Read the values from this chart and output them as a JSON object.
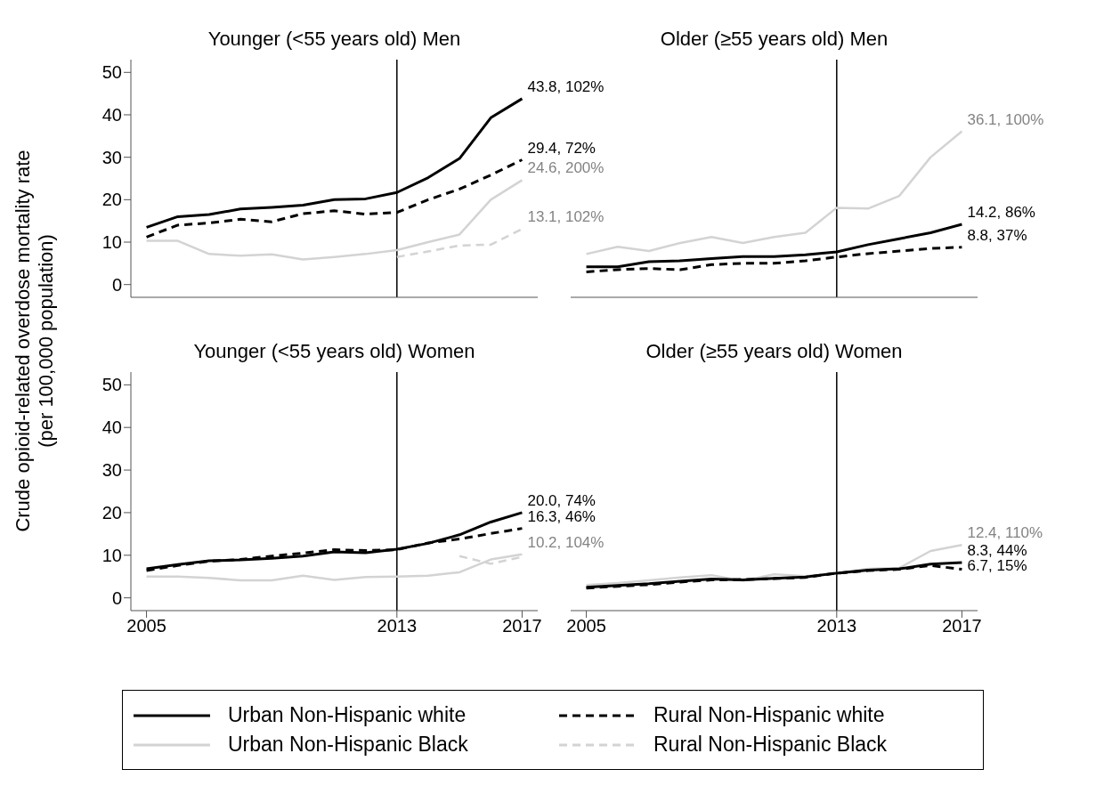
{
  "chart_data": [
    {
      "type": "line",
      "title": "Younger (<55 years old) Men",
      "ylabel": "Crude opioid-related overdose mortality rate\n(per 100,000 population)",
      "legend": "bottom",
      "tick_labels": "y",
      "x": [
        2005,
        2006,
        2007,
        2008,
        2009,
        2010,
        2011,
        2012,
        2013,
        2014,
        2015,
        2016,
        2017
      ],
      "xlim": [
        2004.5,
        2017.5
      ],
      "xticks": [
        2005,
        2013,
        2017
      ],
      "ylim": [
        -3,
        53
      ],
      "yticks": [
        0,
        10,
        20,
        30,
        40,
        50
      ],
      "ref_lines": [
        {
          "axis": "x",
          "value": 2013,
          "color": "#000000"
        }
      ],
      "series": [
        {
          "name": "Urban Non-Hispanic white",
          "color": "#000000",
          "line_style": "solid",
          "values": [
            13.5,
            16,
            16.5,
            17.8,
            18.2,
            18.7,
            20,
            20.2,
            21.7,
            25.2,
            29.7,
            39.3,
            43.8
          ],
          "value_labels": [
            null,
            null,
            null,
            null,
            null,
            null,
            null,
            null,
            null,
            null,
            null,
            null,
            "43.8, 102%"
          ]
        },
        {
          "name": "Rural Non-Hispanic white",
          "color": "#000000",
          "line_style": "dashed",
          "values": [
            11.2,
            14,
            14.5,
            15.4,
            14.8,
            16.7,
            17.4,
            16.6,
            17,
            20,
            22.5,
            25.8,
            29.4
          ],
          "value_labels": [
            null,
            null,
            null,
            null,
            null,
            null,
            null,
            null,
            null,
            null,
            null,
            null,
            "29.4, 72%"
          ]
        },
        {
          "name": "Urban Non-Hispanic Black",
          "color": "#d3d3d3",
          "line_style": "solid",
          "values": [
            10.3,
            10.3,
            7.2,
            6.8,
            7.1,
            5.9,
            6.5,
            7.2,
            8.1,
            10,
            11.8,
            20,
            24.6
          ],
          "value_labels": [
            null,
            null,
            null,
            null,
            null,
            null,
            null,
            null,
            null,
            null,
            null,
            null,
            "24.6, 200%"
          ]
        },
        {
          "name": "Rural Non-Hispanic Black",
          "color": "#d3d3d3",
          "line_style": "dashed",
          "values": [
            null,
            null,
            null,
            null,
            null,
            null,
            null,
            null,
            6.5,
            7.8,
            9.2,
            9.4,
            13.1
          ],
          "value_labels": [
            null,
            null,
            null,
            null,
            null,
            null,
            null,
            null,
            null,
            null,
            null,
            null,
            "13.1, 102%"
          ]
        }
      ]
    },
    {
      "type": "line",
      "title": "Older (≥55 years old) Men",
      "tick_labels": false,
      "x": [
        2005,
        2006,
        2007,
        2008,
        2009,
        2010,
        2011,
        2012,
        2013,
        2014,
        2015,
        2016,
        2017
      ],
      "xlim": [
        2004.5,
        2017.5
      ],
      "xticks": [
        2005,
        2013,
        2017
      ],
      "ylim": [
        -3,
        53
      ],
      "yticks": [
        0,
        10,
        20,
        30,
        40,
        50
      ],
      "ref_lines": [
        {
          "axis": "x",
          "value": 2013,
          "color": "#000000"
        }
      ],
      "series": [
        {
          "name": "Urban Non-Hispanic white",
          "color": "#000000",
          "line_style": "solid",
          "values": [
            4.2,
            4.2,
            5.4,
            5.6,
            6.1,
            6.6,
            6.6,
            7,
            7.7,
            9.4,
            10.8,
            12.2,
            14.2
          ],
          "value_labels": [
            null,
            null,
            null,
            null,
            null,
            null,
            null,
            null,
            null,
            null,
            null,
            null,
            "14.2, 86%"
          ]
        },
        {
          "name": "Rural Non-Hispanic white",
          "color": "#000000",
          "line_style": "dashed",
          "values": [
            3,
            3.5,
            3.8,
            3.5,
            4.7,
            5,
            5,
            5.6,
            6.5,
            7.3,
            7.9,
            8.5,
            8.8
          ],
          "value_labels": [
            null,
            null,
            null,
            null,
            null,
            null,
            null,
            null,
            null,
            null,
            null,
            null,
            "8.8, 37%"
          ]
        },
        {
          "name": "Urban Non-Hispanic Black",
          "color": "#d3d3d3",
          "line_style": "solid",
          "values": [
            7.2,
            8.9,
            7.9,
            9.8,
            11.2,
            9.8,
            11.2,
            12.2,
            18.1,
            17.9,
            20.9,
            30,
            36.1
          ],
          "value_labels": [
            null,
            null,
            null,
            null,
            null,
            null,
            null,
            null,
            null,
            null,
            null,
            null,
            "36.1, 100%"
          ]
        }
      ]
    },
    {
      "type": "line",
      "title": "Younger (<55 years old) Women",
      "x": [
        2005,
        2006,
        2007,
        2008,
        2009,
        2010,
        2011,
        2012,
        2013,
        2014,
        2015,
        2016,
        2017
      ],
      "xlim": [
        2004.5,
        2017.5
      ],
      "xticks": [
        2005,
        2013,
        2017
      ],
      "ylim": [
        -3,
        53
      ],
      "yticks": [
        0,
        10,
        20,
        30,
        40,
        50
      ],
      "ref_lines": [
        {
          "axis": "x",
          "value": 2013,
          "color": "#000000"
        }
      ],
      "series": [
        {
          "name": "Urban Non-Hispanic white",
          "color": "#000000",
          "line_style": "solid",
          "values": [
            6.8,
            7.8,
            8.7,
            8.9,
            9.3,
            9.8,
            10.8,
            10.6,
            11.4,
            12.8,
            14.8,
            17.8,
            20
          ],
          "value_labels": [
            null,
            null,
            null,
            null,
            null,
            null,
            null,
            null,
            null,
            null,
            null,
            null,
            "20.0, 74%"
          ]
        },
        {
          "name": "Rural Non-Hispanic white",
          "color": "#000000",
          "line_style": "dashed",
          "values": [
            6.4,
            7.6,
            8.6,
            9,
            9.8,
            10.5,
            11.3,
            11.1,
            11.3,
            12.9,
            13.8,
            15.1,
            16.3
          ],
          "value_labels": [
            null,
            null,
            null,
            null,
            null,
            null,
            null,
            null,
            null,
            null,
            null,
            null,
            "16.3, 46%"
          ]
        },
        {
          "name": "Urban Non-Hispanic Black",
          "color": "#d3d3d3",
          "line_style": "solid",
          "values": [
            5,
            5,
            4.7,
            4.1,
            4.1,
            5.2,
            4.2,
            4.9,
            5,
            5.2,
            6,
            9,
            10.2
          ],
          "value_labels": [
            null,
            null,
            null,
            null,
            null,
            null,
            null,
            null,
            null,
            null,
            null,
            null,
            "10.2, 104%"
          ]
        },
        {
          "name": "Rural Non-Hispanic Black",
          "color": "#d3d3d3",
          "line_style": "dashed",
          "values": [
            null,
            null,
            null,
            null,
            null,
            null,
            null,
            null,
            null,
            null,
            9.8,
            8,
            9.6
          ]
        }
      ]
    },
    {
      "type": "line",
      "title": "Older (≥55 years old) Women",
      "tick_labels": "x",
      "x": [
        2005,
        2006,
        2007,
        2008,
        2009,
        2010,
        2011,
        2012,
        2013,
        2014,
        2015,
        2016,
        2017
      ],
      "xlim": [
        2004.5,
        2017.5
      ],
      "xticks": [
        2005,
        2013,
        2017
      ],
      "ylim": [
        -3,
        53
      ],
      "yticks": [
        0,
        10,
        20,
        30,
        40,
        50
      ],
      "ref_lines": [
        {
          "axis": "x",
          "value": 2013,
          "color": "#000000"
        }
      ],
      "series": [
        {
          "name": "Urban Non-Hispanic Black",
          "color": "#d3d3d3",
          "line_style": "solid",
          "values": [
            3,
            3.5,
            4.1,
            4.8,
            5.3,
            4,
            5.5,
            5.1,
            5.8,
            6.8,
            7,
            11,
            12.4
          ],
          "value_labels": [
            null,
            null,
            null,
            null,
            null,
            null,
            null,
            null,
            null,
            null,
            null,
            null,
            "12.4, 110%"
          ]
        },
        {
          "name": "Urban Non-Hispanic white",
          "color": "#000000",
          "line_style": "solid",
          "values": [
            2.5,
            2.9,
            3.3,
            3.9,
            4.4,
            4.2,
            4.6,
            4.9,
            5.8,
            6.5,
            6.8,
            7.9,
            8.3
          ],
          "value_labels": [
            null,
            null,
            null,
            null,
            null,
            null,
            null,
            null,
            null,
            null,
            null,
            null,
            "8.3, 44%"
          ]
        },
        {
          "name": "Rural Non-Hispanic white",
          "color": "#000000",
          "line_style": "dashed",
          "values": [
            2.3,
            2.7,
            3.1,
            3.7,
            4.2,
            4.3,
            4.5,
            4.8,
            5.8,
            6.4,
            6.7,
            7.6,
            6.7
          ],
          "value_labels": [
            null,
            null,
            null,
            null,
            null,
            null,
            null,
            null,
            null,
            null,
            null,
            null,
            "6.7, 15%"
          ]
        }
      ]
    }
  ]
}
